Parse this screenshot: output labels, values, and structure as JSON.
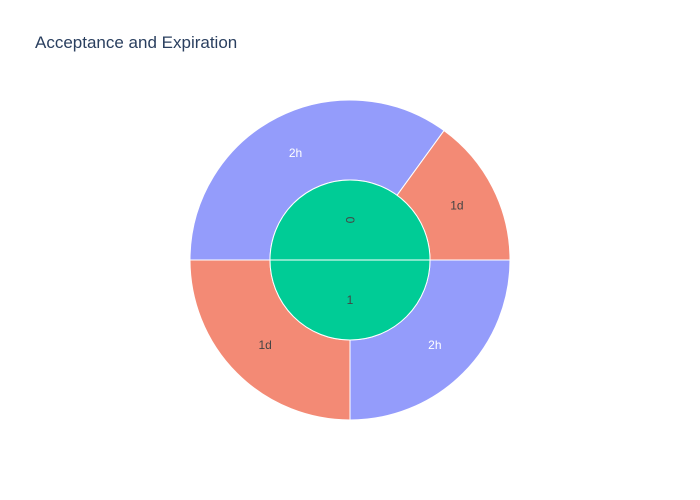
{
  "chart_data": {
    "type": "sunburst",
    "title": "Acceptance and Expiration",
    "nodes": [
      {
        "id": "0",
        "label": "0",
        "parent": "",
        "value": 50,
        "color": "#00cc96",
        "text_color": "#444444"
      },
      {
        "id": "1",
        "label": "1",
        "parent": "",
        "value": 50,
        "color": "#00cc96",
        "text_color": "#444444"
      },
      {
        "id": "0/2h",
        "label": "2h",
        "parent": "0",
        "value": 35,
        "color": "#949cfb",
        "text_color": "#ffffff"
      },
      {
        "id": "0/1d",
        "label": "1d",
        "parent": "0",
        "value": 15,
        "color": "#f38a75",
        "text_color": "#444444"
      },
      {
        "id": "1/2h",
        "label": "2h",
        "parent": "1",
        "value": 25,
        "color": "#949cfb",
        "text_color": "#ffffff"
      },
      {
        "id": "1/1d",
        "label": "1d",
        "parent": "1",
        "value": 25,
        "color": "#f38a75",
        "text_color": "#444444"
      }
    ]
  }
}
